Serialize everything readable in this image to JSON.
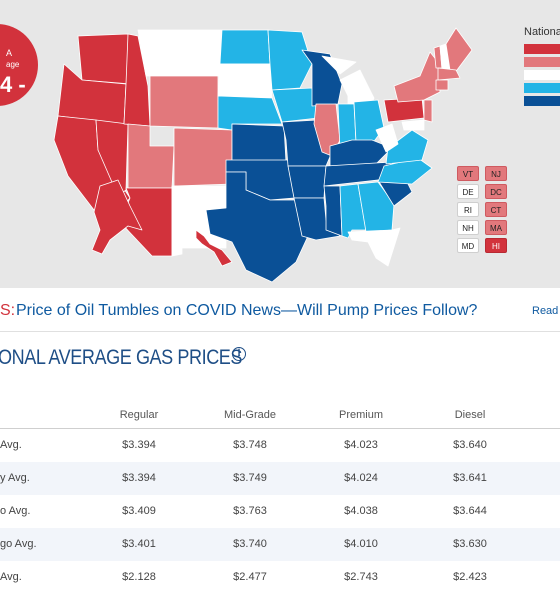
{
  "badge": {
    "line1": "A",
    "line2": "age",
    "line3": "4 -"
  },
  "legend": {
    "title": "Nationa",
    "swatches": [
      "#d2323c",
      "#e2787c",
      "#ffffff",
      "#23b4e6",
      "#0a5096"
    ]
  },
  "colors": {
    "red": "#d2323c",
    "pink": "#e2787c",
    "white": "#ffffff",
    "cyan": "#23b4e6",
    "navy": "#0a5096",
    "background": "#e7e7e7"
  },
  "small_states": [
    {
      "abbr": "VT",
      "color": "pink"
    },
    {
      "abbr": "NJ",
      "color": "pink"
    },
    {
      "abbr": "DE",
      "color": "white"
    },
    {
      "abbr": "DC",
      "color": "pink"
    },
    {
      "abbr": "RI",
      "color": "white"
    },
    {
      "abbr": "CT",
      "color": "pink"
    },
    {
      "abbr": "NH",
      "color": "white"
    },
    {
      "abbr": "MA",
      "color": "pink"
    },
    {
      "abbr": "MD",
      "color": "white"
    },
    {
      "abbr": "HI",
      "color": "red"
    }
  ],
  "news": {
    "prefix": "S:",
    "headline": "Price of Oil Tumbles on COVID News—Will Pump Prices Follow?",
    "more": "Read"
  },
  "section_title": "ONAL AVERAGE GAS PRICES",
  "info_icon": "i",
  "table": {
    "headers": [
      "Regular",
      "Mid-Grade",
      "Premium",
      "Diesel"
    ],
    "rows": [
      {
        "label": "Avg.",
        "values": [
          "$3.394",
          "$3.748",
          "$4.023",
          "$3.640"
        ]
      },
      {
        "label": "y Avg.",
        "values": [
          "$3.394",
          "$3.749",
          "$4.024",
          "$3.641"
        ]
      },
      {
        "label": "o Avg.",
        "values": [
          "$3.409",
          "$3.763",
          "$4.038",
          "$3.644"
        ]
      },
      {
        "label": "go Avg.",
        "values": [
          "$3.401",
          "$3.740",
          "$4.010",
          "$3.630"
        ]
      },
      {
        "label": " Avg.",
        "values": [
          "$2.128",
          "$2.477",
          "$2.743",
          "$2.423"
        ]
      }
    ]
  }
}
